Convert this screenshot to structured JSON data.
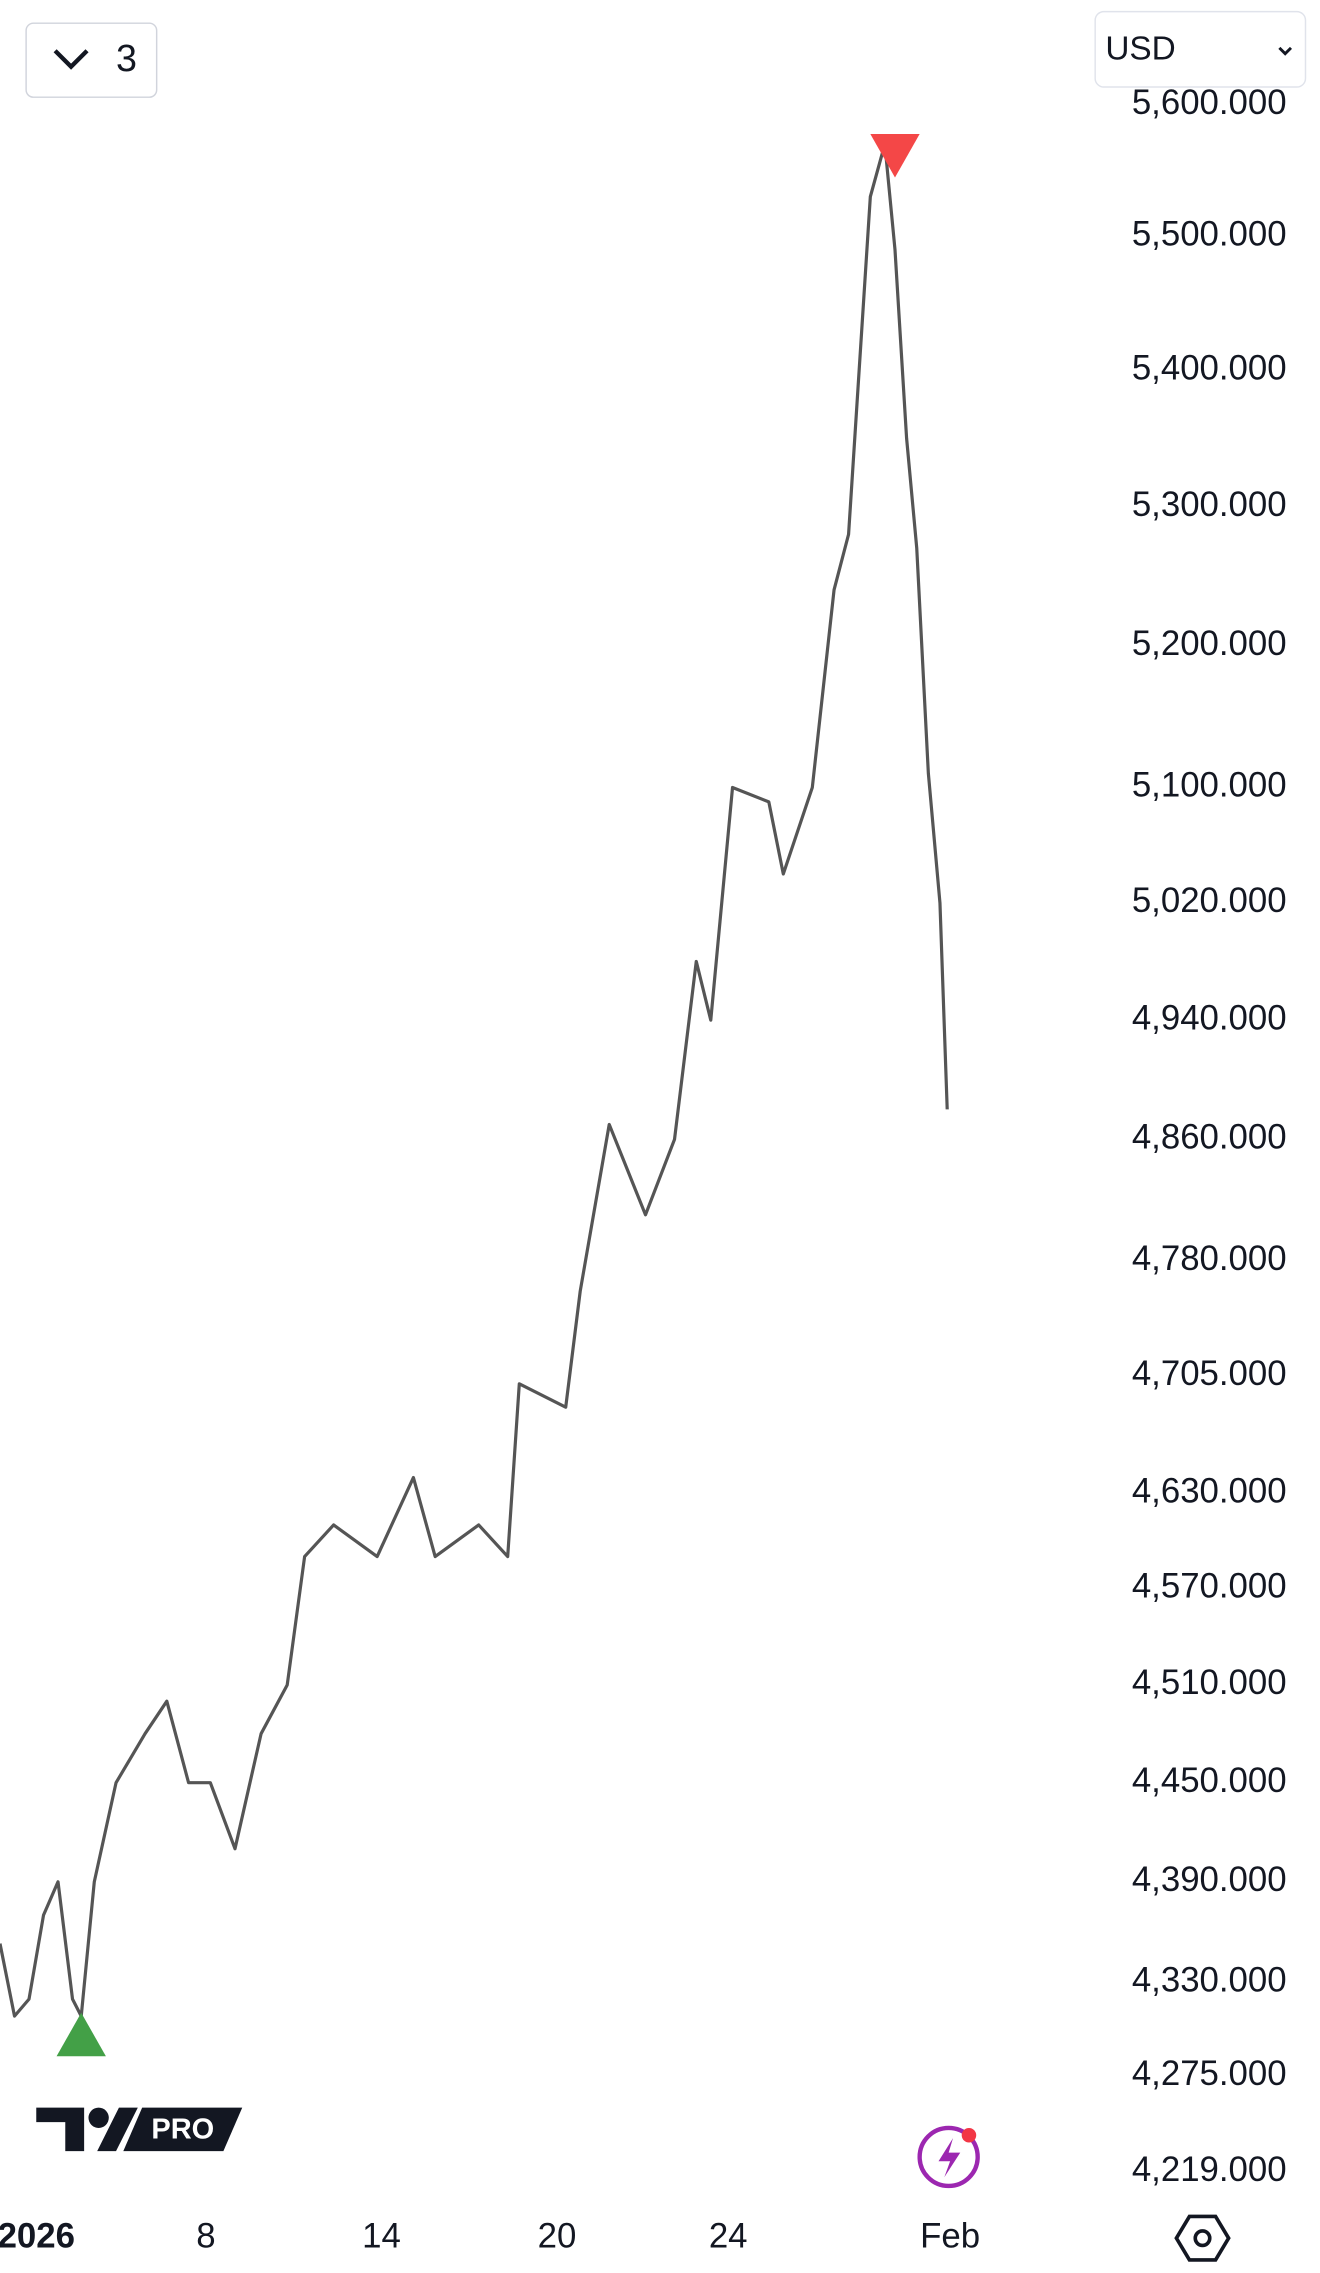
{
  "ui": {
    "interval_button": "3",
    "currency": "USD",
    "logo_badge": "PRO"
  },
  "chart_data": {
    "type": "line",
    "log_scale": true,
    "color": "#555555",
    "x": [
      0,
      1,
      2,
      3,
      4,
      5,
      5.6,
      6.5,
      8,
      10,
      11.5,
      13,
      14.5,
      16.2,
      18,
      19.8,
      21,
      23,
      26,
      28.5,
      30,
      33,
      35,
      35.8,
      39,
      40,
      42,
      44.5,
      46.5,
      48,
      49,
      50.5,
      53,
      54,
      56,
      57.5,
      58.5,
      60,
      61,
      61.7,
      62.5,
      63.2,
      64,
      64.8,
      65.3
    ],
    "values": [
      4353,
      4310,
      4320,
      4370,
      4390,
      4320,
      4310,
      4390,
      4450,
      4480,
      4500,
      4450,
      4450,
      4410,
      4480,
      4510,
      4590,
      4610,
      4590,
      4640,
      4590,
      4610,
      4590,
      4700,
      4685,
      4760,
      4870,
      4810,
      4860,
      4980,
      4940,
      5100,
      5090,
      5040,
      5100,
      5240,
      5280,
      5530,
      5570,
      5490,
      5350,
      5270,
      5110,
      5020,
      4880
    ],
    "markers": [
      {
        "x": 5.6,
        "value": 4300,
        "color": "#43a047",
        "shape": "up"
      },
      {
        "x": 61.7,
        "value": 5560,
        "color": "#f44747",
        "shape": "down"
      }
    ],
    "xlim": [
      0,
      74.5
    ],
    "xticks": [
      {
        "value": 2.5,
        "label": "2026"
      },
      {
        "value": 14.2,
        "label": "8"
      },
      {
        "value": 26.3,
        "label": "14"
      },
      {
        "value": 38.4,
        "label": "20"
      },
      {
        "value": 50.2,
        "label": "24"
      },
      {
        "value": 65.5,
        "label": "Feb"
      }
    ],
    "ylim": [
      4200,
      5681
    ],
    "yticks": [
      {
        "value": 4219,
        "label": "4,219.000"
      },
      {
        "value": 4275,
        "label": "4,275.000"
      },
      {
        "value": 4330,
        "label": "4,330.000"
      },
      {
        "value": 4390,
        "label": "4,390.000"
      },
      {
        "value": 4450,
        "label": "4,450.000"
      },
      {
        "value": 4510,
        "label": "4,510.000"
      },
      {
        "value": 4570,
        "label": "4,570.000"
      },
      {
        "value": 4630,
        "label": "4,630.000"
      },
      {
        "value": 4705,
        "label": "4,705.000"
      },
      {
        "value": 4780,
        "label": "4,780.000"
      },
      {
        "value": 4860,
        "label": "4,860.000"
      },
      {
        "value": 4940,
        "label": "4,940.000"
      },
      {
        "value": 5020,
        "label": "5,020.000"
      },
      {
        "value": 5100,
        "label": "5,100.000"
      },
      {
        "value": 5200,
        "label": "5,200.000"
      },
      {
        "value": 5300,
        "label": "5,300.000"
      },
      {
        "value": 5400,
        "label": "5,400.000"
      },
      {
        "value": 5500,
        "label": "5,500.000"
      },
      {
        "value": 5600,
        "label": "5,600.000"
      }
    ],
    "grid": false
  }
}
